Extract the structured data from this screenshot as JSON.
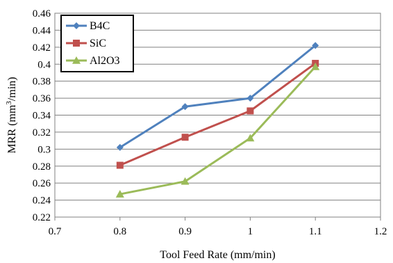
{
  "chart_data": {
    "type": "line",
    "title": "",
    "xlabel": "Tool Feed Rate (mm/min)",
    "ylabel_main": "MRR (mm",
    "ylabel_sup": "3",
    "ylabel_end": "/min)",
    "xlim": [
      0.7,
      1.2
    ],
    "ylim": [
      0.22,
      0.46
    ],
    "x_ticks": [
      "0.7",
      "0.8",
      "0.9",
      "1",
      "1.1",
      "1.2"
    ],
    "y_ticks": [
      "0.22",
      "0.24",
      "0.26",
      "0.28",
      "0.3",
      "0.32",
      "0.34",
      "0.36",
      "0.38",
      "0.4",
      "0.42",
      "0.44",
      "0.46"
    ],
    "x_tick_values": [
      0.7,
      0.8,
      0.9,
      1.0,
      1.1,
      1.2
    ],
    "y_tick_values": [
      0.22,
      0.24,
      0.26,
      0.28,
      0.3,
      0.32,
      0.34,
      0.36,
      0.38,
      0.4,
      0.42,
      0.44,
      0.46
    ],
    "grid": "horizontal",
    "legend_position": "top-left",
    "x": [
      0.8,
      0.9,
      1.0,
      1.1
    ],
    "series": [
      {
        "name": "B4C",
        "values": [
          0.302,
          0.35,
          0.36,
          0.422
        ],
        "color": "#4F81BD",
        "marker": "diamond"
      },
      {
        "name": "SiC",
        "values": [
          0.281,
          0.314,
          0.345,
          0.401
        ],
        "color": "#C0504D",
        "marker": "square"
      },
      {
        "name": "Al2O3",
        "values": [
          0.247,
          0.262,
          0.313,
          0.397
        ],
        "color": "#9BBB59",
        "marker": "triangle"
      }
    ]
  }
}
